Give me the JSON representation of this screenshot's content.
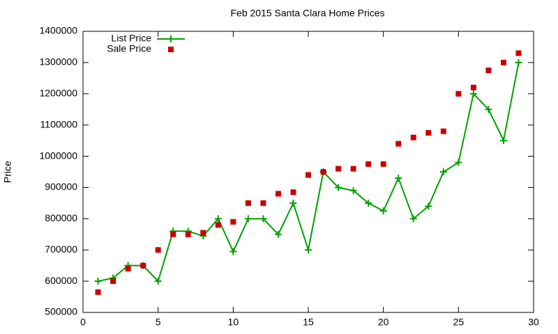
{
  "chart_data": {
    "type": "scatter",
    "title": "Feb 2015 Santa Clara Home Prices",
    "y_label": "Price",
    "x": [
      1,
      2,
      3,
      4,
      5,
      6,
      7,
      8,
      9,
      10,
      11,
      12,
      13,
      14,
      15,
      16,
      17,
      18,
      19,
      20,
      21,
      22,
      23,
      24,
      25,
      26,
      27,
      28,
      29
    ],
    "series": [
      {
        "name": "List Price",
        "color": "#00a000",
        "line": true,
        "marker": "plus",
        "values": [
          600000,
          610000,
          650000,
          650000,
          600000,
          760000,
          760000,
          745000,
          800000,
          695000,
          800000,
          800000,
          750000,
          850000,
          700000,
          950000,
          900000,
          890000,
          850000,
          825000,
          930000,
          800000,
          840000,
          950000,
          980000,
          1200000,
          1150000,
          1050000,
          1300000
        ]
      },
      {
        "name": "Sale Price",
        "color": "#cc0000",
        "line": false,
        "marker": "square",
        "values": [
          565000,
          600000,
          640000,
          650000,
          700000,
          750000,
          750000,
          755000,
          780000,
          790000,
          850000,
          850000,
          880000,
          885000,
          940000,
          950000,
          960000,
          960000,
          975000,
          975000,
          1040000,
          1060000,
          1075000,
          1080000,
          1200000,
          1220000,
          1275000,
          1300000,
          1330000
        ]
      }
    ],
    "xlim": [
      0,
      30
    ],
    "xticks": [
      0,
      5,
      10,
      15,
      20,
      25,
      30
    ],
    "ylim": [
      500000,
      1400000
    ],
    "yticks": [
      500000,
      600000,
      700000,
      800000,
      900000,
      1000000,
      1100000,
      1200000,
      1300000,
      1400000
    ],
    "grid": false,
    "legend": "top-left"
  }
}
